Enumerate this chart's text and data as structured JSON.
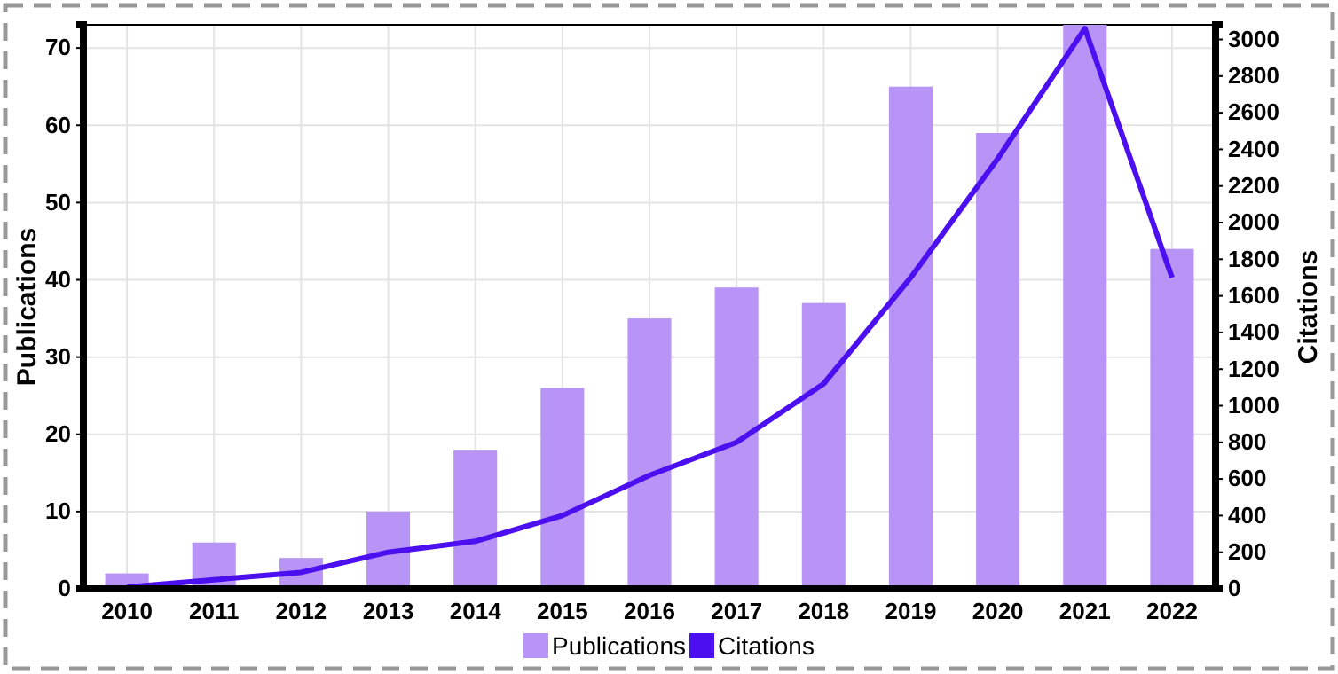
{
  "chart_data": {
    "type": "bar",
    "ylabel": "Publications",
    "y2label": "Citations",
    "categories": [
      "2010",
      "2011",
      "2012",
      "2013",
      "2014",
      "2015",
      "2016",
      "2017",
      "2018",
      "2019",
      "2020",
      "2021",
      "2022"
    ],
    "series": [
      {
        "name": "Publications",
        "color": "#b794f6",
        "values": [
          2,
          6,
          4,
          10,
          18,
          26,
          35,
          39,
          37,
          65,
          59,
          73,
          44
        ]
      },
      {
        "name": "Citations",
        "type": "line",
        "axis": "y2",
        "color": "#4b0ff0",
        "values": [
          10,
          50,
          90,
          200,
          260,
          400,
          620,
          800,
          1120,
          1700,
          2350,
          3060,
          1700
        ]
      }
    ],
    "ylim": [
      0,
      73
    ],
    "yticks": [
      0,
      10,
      20,
      30,
      40,
      50,
      60,
      70
    ],
    "y2lim": [
      0,
      3080
    ],
    "y2ticks": [
      0,
      200,
      400,
      600,
      800,
      1000,
      1200,
      1400,
      1600,
      1800,
      2000,
      2200,
      2400,
      2600,
      2800,
      3000
    ],
    "grid": true,
    "legend": "bottom",
    "marker": "none",
    "line_style": "solid"
  }
}
